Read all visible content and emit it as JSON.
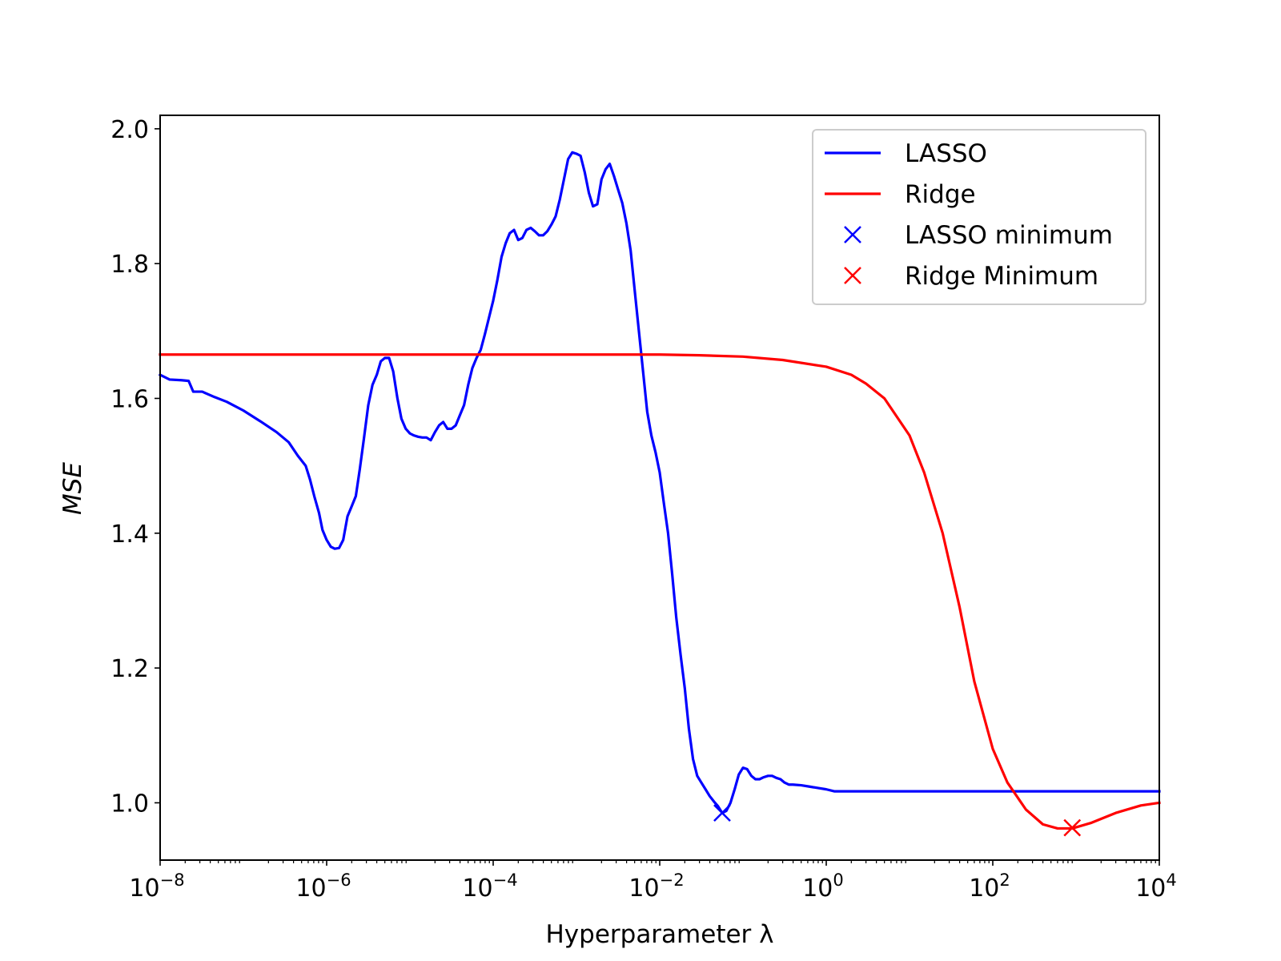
{
  "chart_data": {
    "type": "line",
    "xlabel": "Hyperparameter λ",
    "ylabel": "MSE",
    "x_scale": "log",
    "xlim": [
      1e-08,
      10000
    ],
    "ylim": [
      0.915,
      2.02
    ],
    "grid": false,
    "legend_position": "top-right",
    "x_ticks": [
      {
        "base": "10",
        "exp": "−8",
        "value": 1e-08
      },
      {
        "base": "10",
        "exp": "−6",
        "value": 1e-06
      },
      {
        "base": "10",
        "exp": "−4",
        "value": 0.0001
      },
      {
        "base": "10",
        "exp": "−2",
        "value": 0.01
      },
      {
        "base": "10",
        "exp": "0",
        "value": 1
      },
      {
        "base": "10",
        "exp": "2",
        "value": 100
      },
      {
        "base": "10",
        "exp": "4",
        "value": 10000
      }
    ],
    "y_ticks": [
      {
        "label": "1.0",
        "value": 1.0
      },
      {
        "label": "1.2",
        "value": 1.2
      },
      {
        "label": "1.4",
        "value": 1.4
      },
      {
        "label": "1.6",
        "value": 1.6
      },
      {
        "label": "1.8",
        "value": 1.8
      },
      {
        "label": "2.0",
        "value": 2.0
      }
    ],
    "series": [
      {
        "name": "LASSO",
        "kind": "line",
        "color": "#0000ff",
        "points": [
          [
            1e-08,
            1.635
          ],
          [
            1.3e-08,
            1.628
          ],
          [
            1.8e-08,
            1.627
          ],
          [
            2.2e-08,
            1.626
          ],
          [
            2.5e-08,
            1.61
          ],
          [
            3.2e-08,
            1.61
          ],
          [
            4.5e-08,
            1.602
          ],
          [
            6.3e-08,
            1.595
          ],
          [
            1e-07,
            1.582
          ],
          [
            1.6e-07,
            1.566
          ],
          [
            2.5e-07,
            1.55
          ],
          [
            3.5e-07,
            1.535
          ],
          [
            4.5e-07,
            1.515
          ],
          [
            5.6e-07,
            1.5
          ],
          [
            6.3e-07,
            1.48
          ],
          [
            7.1e-07,
            1.455
          ],
          [
            8.1e-07,
            1.43
          ],
          [
            8.9e-07,
            1.405
          ],
          [
            1e-06,
            1.39
          ],
          [
            1.12e-06,
            1.38
          ],
          [
            1.25e-06,
            1.377
          ],
          [
            1.41e-06,
            1.378
          ],
          [
            1.58e-06,
            1.39
          ],
          [
            1.78e-06,
            1.425
          ],
          [
            2e-06,
            1.44
          ],
          [
            2.24e-06,
            1.455
          ],
          [
            2.5e-06,
            1.495
          ],
          [
            2.8e-06,
            1.54
          ],
          [
            3.16e-06,
            1.59
          ],
          [
            3.55e-06,
            1.62
          ],
          [
            4e-06,
            1.635
          ],
          [
            4.47e-06,
            1.655
          ],
          [
            5e-06,
            1.66
          ],
          [
            5.62e-06,
            1.66
          ],
          [
            6.3e-06,
            1.64
          ],
          [
            7.08e-06,
            1.6
          ],
          [
            7.9e-06,
            1.57
          ],
          [
            8.9e-06,
            1.555
          ],
          [
            1e-05,
            1.548
          ],
          [
            1.12e-05,
            1.545
          ],
          [
            1.26e-05,
            1.543
          ],
          [
            1.41e-05,
            1.542
          ],
          [
            1.58e-05,
            1.542
          ],
          [
            1.78e-05,
            1.538
          ],
          [
            2e-05,
            1.55
          ],
          [
            2.24e-05,
            1.56
          ],
          [
            2.51e-05,
            1.565
          ],
          [
            2.82e-05,
            1.555
          ],
          [
            3.16e-05,
            1.555
          ],
          [
            3.55e-05,
            1.56
          ],
          [
            3.98e-05,
            1.575
          ],
          [
            4.47e-05,
            1.59
          ],
          [
            5.01e-05,
            1.62
          ],
          [
            5.62e-05,
            1.645
          ],
          [
            6.31e-05,
            1.66
          ],
          [
            7.08e-05,
            1.672
          ],
          [
            7.94e-05,
            1.695
          ],
          [
            8.91e-05,
            1.72
          ],
          [
            0.0001,
            1.745
          ],
          [
            0.000112,
            1.775
          ],
          [
            0.000126,
            1.81
          ],
          [
            0.000141,
            1.83
          ],
          [
            0.000158,
            1.845
          ],
          [
            0.000178,
            1.85
          ],
          [
            0.0002,
            1.835
          ],
          [
            0.000224,
            1.838
          ],
          [
            0.000251,
            1.85
          ],
          [
            0.000282,
            1.853
          ],
          [
            0.000316,
            1.848
          ],
          [
            0.000355,
            1.842
          ],
          [
            0.000398,
            1.842
          ],
          [
            0.000447,
            1.848
          ],
          [
            0.000501,
            1.858
          ],
          [
            0.000562,
            1.87
          ],
          [
            0.000631,
            1.895
          ],
          [
            0.000708,
            1.925
          ],
          [
            0.000794,
            1.955
          ],
          [
            0.000891,
            1.965
          ],
          [
            0.001,
            1.963
          ],
          [
            0.00112,
            1.96
          ],
          [
            0.00126,
            1.935
          ],
          [
            0.00141,
            1.905
          ],
          [
            0.00158,
            1.885
          ],
          [
            0.00178,
            1.888
          ],
          [
            0.002,
            1.925
          ],
          [
            0.00224,
            1.94
          ],
          [
            0.00251,
            1.948
          ],
          [
            0.00282,
            1.93
          ],
          [
            0.00316,
            1.91
          ],
          [
            0.00355,
            1.89
          ],
          [
            0.00398,
            1.86
          ],
          [
            0.00447,
            1.82
          ],
          [
            0.00501,
            1.76
          ],
          [
            0.00562,
            1.7
          ],
          [
            0.00631,
            1.64
          ],
          [
            0.00708,
            1.58
          ],
          [
            0.00794,
            1.545
          ],
          [
            0.00891,
            1.52
          ],
          [
            0.01,
            1.49
          ],
          [
            0.0112,
            1.445
          ],
          [
            0.0126,
            1.4
          ],
          [
            0.0141,
            1.34
          ],
          [
            0.0158,
            1.275
          ],
          [
            0.0178,
            1.22
          ],
          [
            0.02,
            1.17
          ],
          [
            0.0224,
            1.11
          ],
          [
            0.0251,
            1.065
          ],
          [
            0.0282,
            1.04
          ],
          [
            0.0316,
            1.03
          ],
          [
            0.0355,
            1.02
          ],
          [
            0.0398,
            1.01
          ],
          [
            0.0447,
            1.002
          ],
          [
            0.0501,
            0.995
          ],
          [
            0.0562,
            0.985
          ],
          [
            0.0631,
            0.988
          ],
          [
            0.0708,
            1.0
          ],
          [
            0.0794,
            1.02
          ],
          [
            0.0891,
            1.042
          ],
          [
            0.1,
            1.052
          ],
          [
            0.112,
            1.05
          ],
          [
            0.126,
            1.04
          ],
          [
            0.141,
            1.035
          ],
          [
            0.158,
            1.035
          ],
          [
            0.178,
            1.038
          ],
          [
            0.2,
            1.04
          ],
          [
            0.224,
            1.04
          ],
          [
            0.251,
            1.037
          ],
          [
            0.282,
            1.035
          ],
          [
            0.316,
            1.03
          ],
          [
            0.355,
            1.027
          ],
          [
            0.398,
            1.027
          ],
          [
            0.501,
            1.026
          ],
          [
            0.631,
            1.024
          ],
          [
            0.794,
            1.022
          ],
          [
            1,
            1.02
          ],
          [
            1.26,
            1.017
          ],
          [
            1.58,
            1.017
          ],
          [
            2,
            1.017
          ],
          [
            10,
            1.017
          ],
          [
            100,
            1.017
          ],
          [
            1000,
            1.017
          ],
          [
            10000,
            1.017
          ]
        ]
      },
      {
        "name": "Ridge",
        "kind": "line",
        "color": "#ff0000",
        "points": [
          [
            1e-08,
            1.665
          ],
          [
            1e-06,
            1.665
          ],
          [
            0.0001,
            1.665
          ],
          [
            0.01,
            1.665
          ],
          [
            0.03,
            1.664
          ],
          [
            0.1,
            1.662
          ],
          [
            0.3,
            1.657
          ],
          [
            1,
            1.647
          ],
          [
            2,
            1.635
          ],
          [
            3,
            1.622
          ],
          [
            5,
            1.6
          ],
          [
            10,
            1.545
          ],
          [
            15,
            1.49
          ],
          [
            25,
            1.4
          ],
          [
            40,
            1.29
          ],
          [
            60,
            1.18
          ],
          [
            100,
            1.08
          ],
          [
            150,
            1.03
          ],
          [
            250,
            0.99
          ],
          [
            400,
            0.968
          ],
          [
            600,
            0.962
          ],
          [
            900,
            0.962
          ],
          [
            1500,
            0.97
          ],
          [
            3000,
            0.985
          ],
          [
            6000,
            0.996
          ],
          [
            10000,
            1.0
          ]
        ]
      },
      {
        "name": "LASSO minimum",
        "kind": "marker",
        "marker": "x",
        "color": "#0000ff",
        "points": [
          [
            0.0562,
            0.985
          ]
        ]
      },
      {
        "name": "Ridge Minimum",
        "kind": "marker",
        "marker": "x",
        "color": "#ff0000",
        "points": [
          [
            900,
            0.963
          ]
        ]
      }
    ]
  }
}
